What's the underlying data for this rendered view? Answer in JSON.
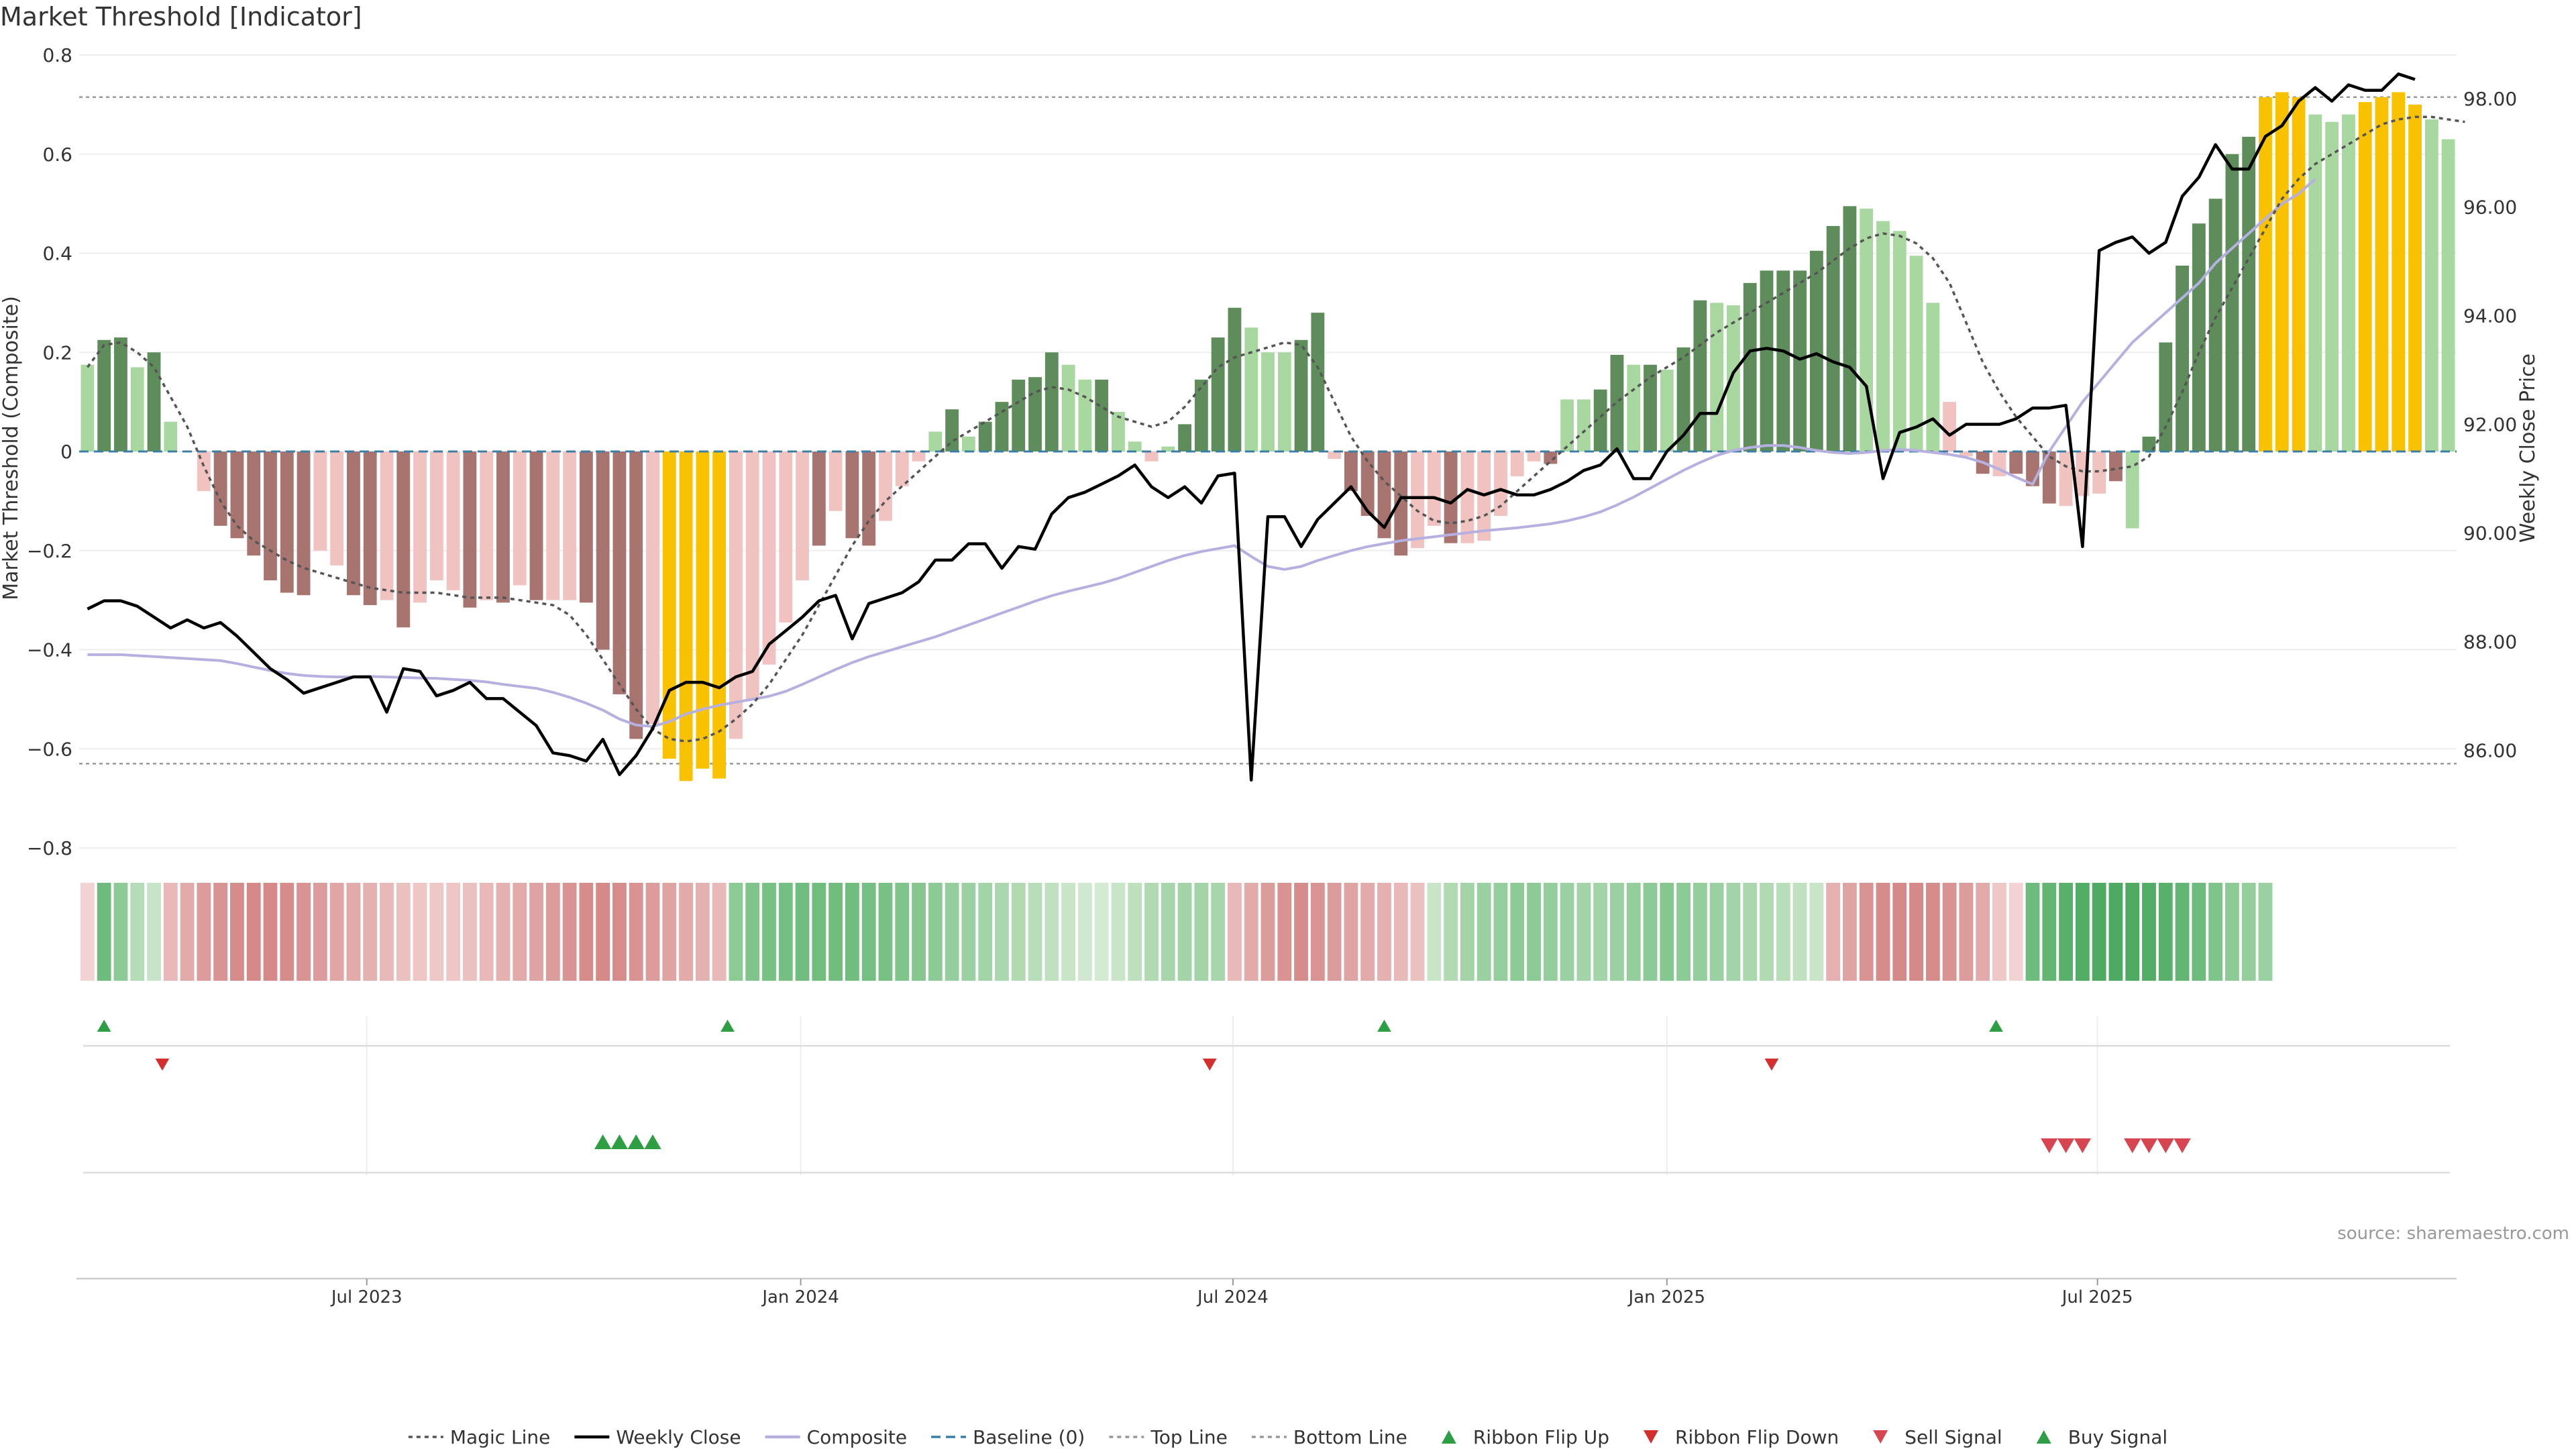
{
  "chart_data": {
    "type": "bar",
    "title": "Market Threshold [Indicator]",
    "ylabel_left": "Market Threshold (Composite)",
    "ylabel_right": "Weekly Close Price",
    "source": "source: sharemaestro.com",
    "y_left_range": [
      -0.8,
      0.8
    ],
    "y_left_ticks": [
      0.8,
      0.6,
      0.4,
      0.2,
      0,
      -0.2,
      -0.4,
      -0.6,
      -0.8
    ],
    "y_left_tick_labels": [
      "0.8",
      "0.6",
      "0.4",
      "0.2",
      "0",
      "−0.2",
      "−0.4",
      "−0.6",
      "−0.8"
    ],
    "y_right_range": [
      84.2,
      98.8
    ],
    "y_right_ticks": [
      98,
      96,
      94,
      92,
      90,
      88,
      86
    ],
    "y_right_tick_labels": [
      "98.00",
      "96.00",
      "94.00",
      "92.00",
      "90.00",
      "88.00",
      "86.00"
    ],
    "x_tick_labels": [
      "Jul 2023",
      "Jan 2024",
      "Jul 2024",
      "Jan 2025",
      "Jul 2025"
    ],
    "x_tick_weeks": [
      17.3,
      43.4,
      69.4,
      95.5,
      121.4
    ],
    "top_line": 0.715,
    "bottom_line": -0.63,
    "composite_values": [
      0.175,
      0.225,
      0.23,
      0.17,
      0.2,
      0.06,
      0,
      -0.08,
      -0.15,
      -0.175,
      -0.21,
      -0.26,
      -0.285,
      -0.29,
      -0.2,
      -0.23,
      -0.29,
      -0.31,
      -0.3,
      -0.355,
      -0.305,
      -0.26,
      -0.28,
      -0.315,
      -0.3,
      -0.305,
      -0.27,
      -0.3,
      -0.3,
      -0.3,
      -0.305,
      -0.4,
      -0.49,
      -0.58,
      -0.55,
      -0.62,
      -0.665,
      -0.64,
      -0.66,
      -0.58,
      -0.5,
      -0.43,
      -0.345,
      -0.26,
      -0.19,
      -0.12,
      -0.175,
      -0.19,
      -0.14,
      -0.07,
      -0.02,
      0.04,
      0.085,
      0.03,
      0.06,
      0.1,
      0.145,
      0.15,
      0.2,
      0.175,
      0.145,
      0.145,
      0.08,
      0.02,
      -0.02,
      0.01,
      0.055,
      0.145,
      0.23,
      0.29,
      0.25,
      0.2,
      0.2,
      0.225,
      0.28,
      -0.015,
      -0.08,
      -0.13,
      -0.175,
      -0.21,
      -0.195,
      -0.15,
      -0.185,
      -0.185,
      -0.18,
      -0.13,
      -0.05,
      -0.02,
      -0.025,
      0.105,
      0.105,
      0.125,
      0.195,
      0.175,
      0.175,
      0.165,
      0.21,
      0.305,
      0.3,
      0.295,
      0.34,
      0.365,
      0.365,
      0.365,
      0.405,
      0.455,
      0.495,
      0.49,
      0.465,
      0.445,
      0.395,
      0.3,
      0.1,
      -0.01,
      -0.045,
      -0.05,
      -0.045,
      -0.07,
      -0.105,
      -0.11,
      -0.09,
      -0.085,
      -0.06,
      -0.155,
      0.03,
      0.22,
      0.375,
      0.46,
      0.51,
      0.6,
      0.635,
      0.715,
      0.725,
      0.715,
      0.68,
      0.665,
      0.68,
      0.705,
      0.715,
      0.725,
      0.7,
      0.67,
      0.63
    ],
    "bar_colors": [
      "#a8d8a0",
      "#5e8c5a",
      "#5e8c5a",
      "#a8d8a0",
      "#5e8c5a",
      "#a8d8a0",
      "#f0c2c0",
      "#f0c2c0",
      "#a87470",
      "#a87470",
      "#a87470",
      "#a87470",
      "#a87470",
      "#a87470",
      "#f0c2c0",
      "#f0c2c0",
      "#a87470",
      "#a87470",
      "#f0c2c0",
      "#a87470",
      "#f0c2c0",
      "#f0c2c0",
      "#f0c2c0",
      "#a87470",
      "#f0c2c0",
      "#a87470",
      "#f0c2c0",
      "#a87470",
      "#f0c2c0",
      "#f0c2c0",
      "#a87470",
      "#a87470",
      "#a87470",
      "#a87470",
      "#f0c2c0",
      "#f9c200",
      "#f9c200",
      "#f9c200",
      "#f9c200",
      "#f0c2c0",
      "#f0c2c0",
      "#f0c2c0",
      "#f0c2c0",
      "#f0c2c0",
      "#a87470",
      "#f0c2c0",
      "#a87470",
      "#a87470",
      "#f0c2c0",
      "#f0c2c0",
      "#f0c2c0",
      "#a8d8a0",
      "#5e8c5a",
      "#a8d8a0",
      "#5e8c5a",
      "#5e8c5a",
      "#5e8c5a",
      "#5e8c5a",
      "#5e8c5a",
      "#a8d8a0",
      "#a8d8a0",
      "#5e8c5a",
      "#a8d8a0",
      "#a8d8a0",
      "#f0c2c0",
      "#a8d8a0",
      "#5e8c5a",
      "#5e8c5a",
      "#5e8c5a",
      "#5e8c5a",
      "#a8d8a0",
      "#a8d8a0",
      "#a8d8a0",
      "#5e8c5a",
      "#5e8c5a",
      "#f0c2c0",
      "#a87470",
      "#a87470",
      "#a87470",
      "#a87470",
      "#f0c2c0",
      "#f0c2c0",
      "#a87470",
      "#f0c2c0",
      "#f0c2c0",
      "#f0c2c0",
      "#f0c2c0",
      "#f0c2c0",
      "#a87470",
      "#a8d8a0",
      "#a8d8a0",
      "#5e8c5a",
      "#5e8c5a",
      "#a8d8a0",
      "#5e8c5a",
      "#a8d8a0",
      "#5e8c5a",
      "#5e8c5a",
      "#a8d8a0",
      "#a8d8a0",
      "#5e8c5a",
      "#5e8c5a",
      "#5e8c5a",
      "#5e8c5a",
      "#5e8c5a",
      "#5e8c5a",
      "#5e8c5a",
      "#a8d8a0",
      "#a8d8a0",
      "#a8d8a0",
      "#a8d8a0",
      "#a8d8a0",
      "#f0c2c0",
      "#f0c2c0",
      "#a87470",
      "#f0c2c0",
      "#a87470",
      "#a87470",
      "#a87470",
      "#f0c2c0",
      "#f0c2c0",
      "#f0c2c0",
      "#a87470",
      "#a8d8a0",
      "#5e8c5a",
      "#5e8c5a",
      "#5e8c5a",
      "#5e8c5a",
      "#5e8c5a",
      "#5e8c5a",
      "#5e8c5a",
      "#f9c200",
      "#f9c200",
      "#f9c200",
      "#a8d8a0",
      "#a8d8a0",
      "#a8d8a0",
      "#f9c200",
      "#f9c200",
      "#f9c200",
      "#f9c200",
      "#a8d8a0",
      "#a8d8a0"
    ],
    "magic_line": [
      0.17,
      0.215,
      0.22,
      0.2,
      0.17,
      0.11,
      0.05,
      -0.03,
      -0.1,
      -0.15,
      -0.18,
      -0.2,
      -0.22,
      -0.235,
      -0.245,
      -0.255,
      -0.265,
      -0.275,
      -0.28,
      -0.285,
      -0.285,
      -0.285,
      -0.29,
      -0.295,
      -0.295,
      -0.295,
      -0.3,
      -0.305,
      -0.31,
      -0.33,
      -0.37,
      -0.42,
      -0.47,
      -0.52,
      -0.56,
      -0.58,
      -0.585,
      -0.58,
      -0.565,
      -0.54,
      -0.51,
      -0.47,
      -0.42,
      -0.37,
      -0.31,
      -0.25,
      -0.19,
      -0.14,
      -0.1,
      -0.07,
      -0.04,
      -0.01,
      0.02,
      0.04,
      0.06,
      0.08,
      0.1,
      0.12,
      0.13,
      0.125,
      0.11,
      0.09,
      0.07,
      0.06,
      0.05,
      0.06,
      0.09,
      0.13,
      0.17,
      0.19,
      0.2,
      0.21,
      0.22,
      0.215,
      0.17,
      0.1,
      0.03,
      -0.02,
      -0.06,
      -0.09,
      -0.12,
      -0.14,
      -0.145,
      -0.14,
      -0.13,
      -0.11,
      -0.08,
      -0.05,
      -0.02,
      0.01,
      0.04,
      0.07,
      0.1,
      0.125,
      0.15,
      0.17,
      0.19,
      0.215,
      0.24,
      0.26,
      0.28,
      0.3,
      0.32,
      0.34,
      0.36,
      0.385,
      0.41,
      0.43,
      0.44,
      0.435,
      0.42,
      0.39,
      0.34,
      0.26,
      0.18,
      0.12,
      0.07,
      0.03,
      -0.01,
      -0.03,
      -0.04,
      -0.04,
      -0.035,
      -0.03,
      -0.01,
      0.05,
      0.12,
      0.2,
      0.27,
      0.33,
      0.39,
      0.45,
      0.51,
      0.55,
      0.58,
      0.6,
      0.62,
      0.64,
      0.66,
      0.67,
      0.675,
      0.675,
      0.67,
      0.665
    ],
    "weekly_close": [
      88.6,
      88.75,
      88.75,
      88.65,
      88.45,
      88.25,
      88.4,
      88.25,
      88.35,
      88.1,
      87.8,
      87.5,
      87.3,
      87.05,
      87.15,
      87.25,
      87.35,
      87.35,
      86.7,
      87.5,
      87.45,
      87.0,
      87.1,
      87.25,
      86.95,
      86.95,
      86.7,
      86.45,
      85.95,
      85.9,
      85.8,
      86.2,
      85.55,
      85.9,
      86.4,
      87.1,
      87.25,
      87.25,
      87.15,
      87.35,
      87.45,
      87.95,
      88.2,
      88.45,
      88.75,
      88.85,
      88.05,
      88.7,
      88.8,
      88.9,
      89.1,
      89.5,
      89.5,
      89.8,
      89.8,
      89.35,
      89.75,
      89.7,
      90.35,
      90.65,
      90.75,
      90.9,
      91.05,
      91.25,
      90.85,
      90.65,
      90.85,
      90.55,
      91.05,
      91.1,
      85.45,
      90.3,
      90.3,
      89.75,
      90.25,
      90.55,
      90.85,
      90.4,
      90.1,
      90.65,
      90.65,
      90.65,
      90.55,
      90.8,
      90.7,
      90.8,
      90.7,
      90.7,
      90.8,
      90.95,
      91.15,
      91.25,
      91.55,
      91.0,
      91.0,
      91.5,
      91.8,
      92.2,
      92.2,
      92.95,
      93.35,
      93.4,
      93.35,
      93.2,
      93.3,
      93.15,
      93.05,
      92.7,
      91.0,
      91.85,
      91.95,
      92.1,
      91.8,
      92.0,
      92.0,
      92.0,
      92.1,
      92.3,
      92.3,
      92.35,
      89.75,
      95.2,
      95.35,
      95.45,
      95.15,
      95.35,
      96.2,
      96.55,
      97.15,
      96.7,
      96.7,
      97.3,
      97.5,
      97.95,
      98.2,
      97.95,
      98.25,
      98.15,
      98.15,
      98.45,
      98.35
    ],
    "composite_line": [
      -0.41,
      -0.41,
      -0.41,
      -0.412,
      -0.414,
      -0.416,
      -0.418,
      -0.42,
      -0.422,
      -0.428,
      -0.435,
      -0.442,
      -0.448,
      -0.452,
      -0.454,
      -0.455,
      -0.455,
      -0.454,
      -0.455,
      -0.456,
      -0.457,
      -0.458,
      -0.46,
      -0.462,
      -0.465,
      -0.47,
      -0.474,
      -0.478,
      -0.486,
      -0.496,
      -0.508,
      -0.522,
      -0.54,
      -0.552,
      -0.555,
      -0.545,
      -0.53,
      -0.52,
      -0.512,
      -0.506,
      -0.5,
      -0.494,
      -0.484,
      -0.47,
      -0.455,
      -0.44,
      -0.426,
      -0.414,
      -0.404,
      -0.394,
      -0.384,
      -0.374,
      -0.362,
      -0.35,
      -0.338,
      -0.326,
      -0.314,
      -0.302,
      -0.291,
      -0.282,
      -0.274,
      -0.266,
      -0.256,
      -0.244,
      -0.232,
      -0.22,
      -0.21,
      -0.202,
      -0.196,
      -0.19,
      -0.212,
      -0.232,
      -0.238,
      -0.232,
      -0.22,
      -0.21,
      -0.2,
      -0.192,
      -0.186,
      -0.18,
      -0.176,
      -0.172,
      -0.168,
      -0.164,
      -0.16,
      -0.157,
      -0.154,
      -0.15,
      -0.146,
      -0.14,
      -0.132,
      -0.122,
      -0.108,
      -0.092,
      -0.074,
      -0.056,
      -0.038,
      -0.022,
      -0.008,
      0.002,
      0.008,
      0.012,
      0.012,
      0.008,
      0.002,
      -0.002,
      -0.004,
      -0.002,
      0.002,
      0.004,
      0.002,
      -0.002,
      -0.006,
      -0.012,
      -0.022,
      -0.036,
      -0.052,
      -0.066,
      0.0,
      0.05,
      0.1,
      0.14,
      0.18,
      0.22,
      0.25,
      0.28,
      0.31,
      0.34,
      0.38,
      0.41,
      0.44,
      0.47,
      0.5,
      0.52,
      0.55
    ],
    "ribbon_colors": [
      "#f2d2d2",
      "#6dbb7d",
      "#8ccb96",
      "#b4dcb6",
      "#c7e4c8",
      "#e8b9b8",
      "#e2aaa9",
      "#dc9c9b",
      "#d99392",
      "#d68c8b",
      "#d58988",
      "#d58988",
      "#d68c8b",
      "#d99392",
      "#dc9c9b",
      "#e0a5a4",
      "#e2aaa9",
      "#e5b1b0",
      "#e8b9b8",
      "#ebc1c0",
      "#edc6c5",
      "#eec8c7",
      "#edc6c5",
      "#ebc1c0",
      "#e8b9b8",
      "#e5b1b0",
      "#e2aaa9",
      "#dfa3a2",
      "#dc9c9b",
      "#d99392",
      "#d68c8b",
      "#d58988",
      "#d68c8b",
      "#d99392",
      "#dc9c9b",
      "#dfa3a2",
      "#e2aaa9",
      "#e5b1b0",
      "#e8b9b8",
      "#8ccb96",
      "#7fc48b",
      "#78c185",
      "#74bf82",
      "#71bd7f",
      "#70bd7e",
      "#70bd7e",
      "#71bd7f",
      "#74bf82",
      "#78c185",
      "#7fc48b",
      "#86c790",
      "#8ccb96",
      "#94ce9c",
      "#9bd1a2",
      "#a2d4a8",
      "#aad7ae",
      "#b1dab3",
      "#b8ddb9",
      "#c0e1c0",
      "#c8e5c8",
      "#d0e8cf",
      "#d4ead3",
      "#c8e5c8",
      "#bde0bd",
      "#b1dab3",
      "#a8d6ac",
      "#a2d4a8",
      "#a2d4a8",
      "#a8d6ac",
      "#e8b9b8",
      "#e2aaa9",
      "#dc9c9b",
      "#d99392",
      "#d68c8b",
      "#d99392",
      "#dc9c9b",
      "#dfa3a2",
      "#e2aaa9",
      "#e5b1b0",
      "#e8b9b8",
      "#ebc1c0",
      "#c8e5c8",
      "#b1dab3",
      "#a2d4a8",
      "#9bd1a2",
      "#94ce9c",
      "#8ccb96",
      "#8ccb96",
      "#94ce9c",
      "#9bd1a2",
      "#a2d4a8",
      "#a2d4a8",
      "#9bd1a2",
      "#94ce9c",
      "#8ccb96",
      "#86c790",
      "#8ccb96",
      "#94ce9c",
      "#9bd1a2",
      "#a2d4a8",
      "#aad7ae",
      "#b1dab3",
      "#b8ddb9",
      "#c0e1c0",
      "#c8e5c8",
      "#e5b1b0",
      "#dfa3a2",
      "#d99392",
      "#d68c8b",
      "#d58988",
      "#d58988",
      "#d68c8b",
      "#d99392",
      "#dc9c9b",
      "#e2aaa9",
      "#eec8c7",
      "#f2d2d2",
      "#6dbb7d",
      "#62b573",
      "#58b06a",
      "#52ad65",
      "#4fab62",
      "#4ea962",
      "#4fab62",
      "#52ad65",
      "#58b06a",
      "#62b573",
      "#6dbb7d",
      "#7fc48b",
      "#8ccb96",
      "#94ce9c",
      "#9bd1a2"
    ],
    "ribbon_flip_up_weeks": [
      1,
      38.5,
      78,
      114.8
    ],
    "ribbon_flip_down_weeks": [
      4.5,
      67.5,
      101.3
    ],
    "buy_signal_weeks": [
      31,
      32,
      33,
      34
    ],
    "sell_signal_weeks": [
      118,
      119,
      120,
      123,
      124,
      125,
      126
    ],
    "legend": [
      {
        "label": "Magic Line",
        "style": "dotted",
        "color": "#555555"
      },
      {
        "label": "Weekly Close",
        "style": "solid",
        "color": "#000000"
      },
      {
        "label": "Composite",
        "style": "solid",
        "color": "#b5b0e0"
      },
      {
        "label": "Baseline (0)",
        "style": "dashed",
        "color": "#3a7fa8"
      },
      {
        "label": "Top Line",
        "style": "dotted",
        "color": "#999999"
      },
      {
        "label": "Bottom Line",
        "style": "dotted",
        "color": "#999999"
      },
      {
        "label": "Ribbon Flip Up",
        "style": "triangle-up",
        "color": "#2e9e44"
      },
      {
        "label": "Ribbon Flip Down",
        "style": "triangle-down",
        "color": "#d32f2f"
      },
      {
        "label": "Sell Signal",
        "style": "triangle-down",
        "color": "#d64550"
      },
      {
        "label": "Buy Signal",
        "style": "triangle-up",
        "color": "#2e9e44"
      }
    ]
  }
}
